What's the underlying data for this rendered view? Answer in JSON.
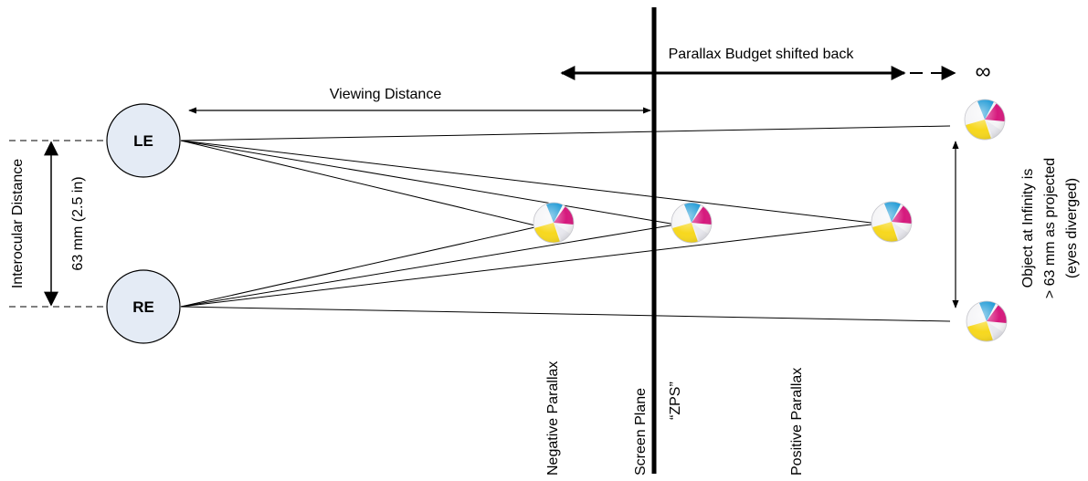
{
  "labels": {
    "budget": "Parallax Budget shifted back",
    "infinity": "∞",
    "viewing_distance": "Viewing Distance",
    "left_eye": "LE",
    "right_eye": "RE",
    "interocular": "Interocular Distance",
    "interocular_value": "63 mm (2.5 in)",
    "negative_parallax": "Negative Parallax",
    "screen_plane": "Screen Plane",
    "zps": "“ZPS”",
    "positive_parallax": "Positive Parallax",
    "infinity_note_line1": "Object at Infinity is",
    "infinity_note_line2": "> 63 mm as projected",
    "infinity_note_line3": "(eyes diverged)"
  },
  "colors": {
    "eye_fill": "#e4ebf5",
    "ink": "#000000",
    "ball_yellow": "#f7d81e",
    "ball_magenta": "#d6197d",
    "ball_cyan": "#1f9ad6",
    "ball_white": "#f4f4f6"
  },
  "icons": [
    "beach-ball-icon"
  ]
}
